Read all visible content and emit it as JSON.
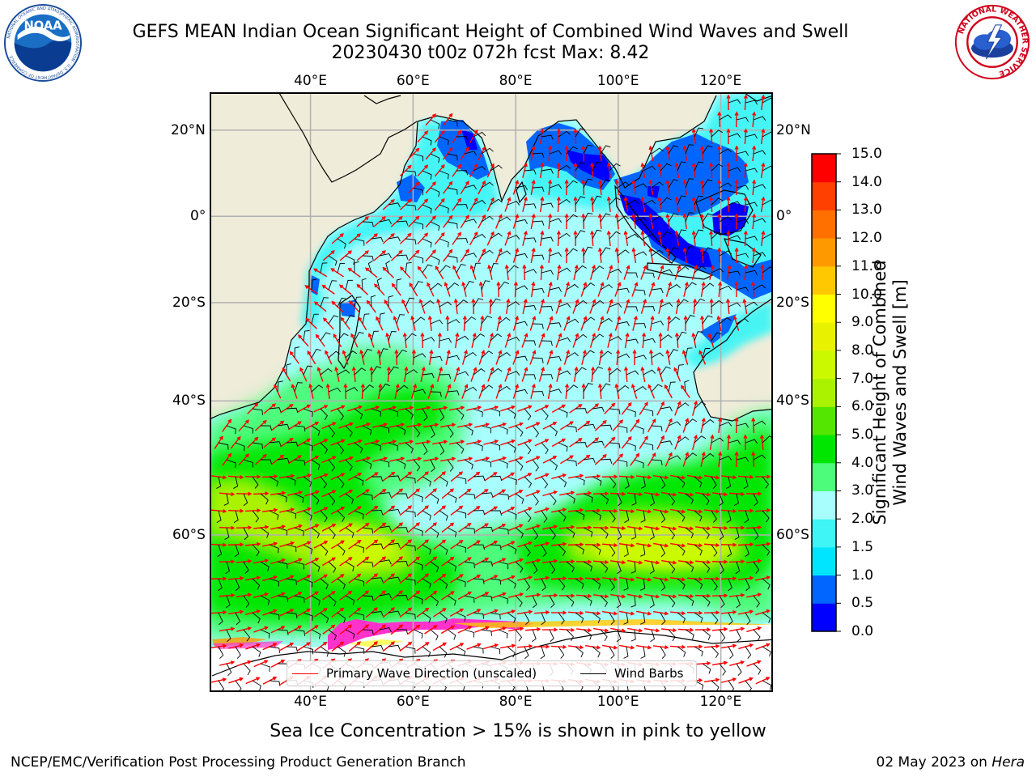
{
  "title_line1": "GEFS MEAN Indian Ocean Significant Height of Combined Wind Waves and Swell",
  "title_line2": "20230430 t00z 072h fcst   Max: 8.42",
  "logos": {
    "left": {
      "text": "NOAA",
      "ring_text": "NATIONAL OCEANIC AND ATMOSPHERIC ADMINISTRATION · U.S. DEPARTMENT OF COMMERCE"
    },
    "right": {
      "ring_text": "NATIONAL WEATHER SERVICE"
    }
  },
  "map": {
    "lon_ticks": [
      "40°E",
      "60°E",
      "80°E",
      "100°E",
      "120°E"
    ],
    "lon_values": [
      40,
      60,
      80,
      100,
      120
    ],
    "lat_ticks": [
      "20°N",
      "0°",
      "20°S",
      "40°S",
      "60°S"
    ],
    "lat_values": [
      20,
      0,
      -20,
      -40,
      -60
    ],
    "lon_range": [
      20.5,
      130
    ],
    "lat_range": [
      28,
      -74
    ],
    "colors": {
      "land": "#efecd9",
      "coast": "#000000",
      "grid": "#b0b0b0",
      "wave_arrow": "#ff0000",
      "barb": "#000000",
      "sea_ice": "#ff33cc"
    }
  },
  "legend": {
    "wave_label": "Primary Wave Direction (unscaled)",
    "barb_label": "Wind Barbs"
  },
  "colorbar": {
    "label_line1": "Significant Height of Combined",
    "label_line2": "Wind Waves and Swell [m]",
    "ticks": [
      "0.0",
      "0.5",
      "1.0",
      "1.5",
      "2.0",
      "3.0",
      "4.0",
      "5.0",
      "6.0",
      "7.0",
      "8.0",
      "9.0",
      "10.0",
      "11.0",
      "12.0",
      "13.0",
      "14.0",
      "15.0"
    ],
    "colors": [
      "#0000ff",
      "#0066ff",
      "#00e5ff",
      "#3ff5f5",
      "#a8fdfd",
      "#4dfc7a",
      "#00e600",
      "#54e600",
      "#aaf200",
      "#cbfa00",
      "#e8f200",
      "#ffff00",
      "#ffc800",
      "#ff9900",
      "#ff7000",
      "#ff4000",
      "#ff0000"
    ]
  },
  "footer": {
    "sea_ice_note": "Sea Ice Concentration > 15% is shown in pink to yellow",
    "producer": "NCEP/EMC/Verification Post Processing Product Generation Branch",
    "date": "02 May 2023 on ",
    "machine": "Hera"
  }
}
